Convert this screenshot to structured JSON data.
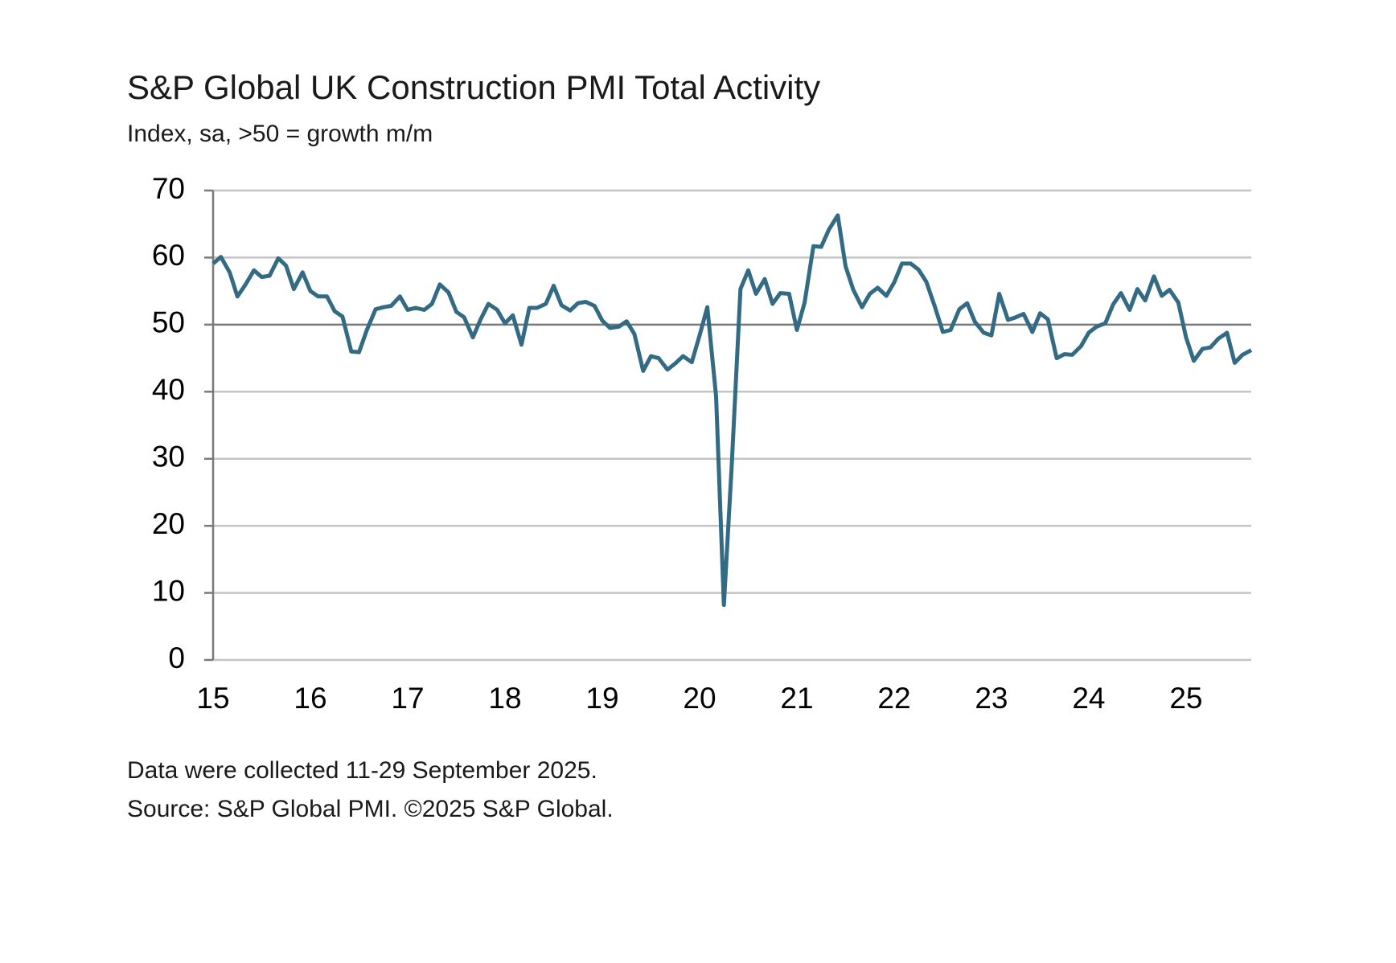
{
  "chart_data": {
    "type": "line",
    "title": "S&P Global UK Construction PMI Total Activity",
    "subtitle": "Index, sa, >50 = growth m/m",
    "notes": [
      "Data were collected 11-29 September 2025.",
      "Source: S&P Global PMI. ©2025 S&P Global."
    ],
    "x": [
      15,
      15.08,
      15.17,
      15.25,
      15.33,
      15.42,
      15.5,
      15.58,
      15.67,
      15.75,
      15.83,
      15.92,
      16,
      16.08,
      16.17,
      16.25,
      16.33,
      16.42,
      16.5,
      16.58,
      16.67,
      16.75,
      16.83,
      16.92,
      17,
      17.08,
      17.17,
      17.25,
      17.33,
      17.42,
      17.5,
      17.58,
      17.67,
      17.75,
      17.83,
      17.92,
      18,
      18.08,
      18.17,
      18.25,
      18.33,
      18.42,
      18.5,
      18.58,
      18.67,
      18.75,
      18.83,
      18.92,
      19,
      19.08,
      19.17,
      19.25,
      19.33,
      19.42,
      19.5,
      19.58,
      19.67,
      19.75,
      19.83,
      19.92,
      20,
      20.08,
      20.17,
      20.25,
      20.33,
      20.42,
      20.5,
      20.58,
      20.67,
      20.75,
      20.83,
      20.92,
      21,
      21.08,
      21.17,
      21.25,
      21.33,
      21.42,
      21.5,
      21.58,
      21.67,
      21.75,
      21.83,
      21.92,
      22,
      22.08,
      22.17,
      22.25,
      22.33,
      22.42,
      22.5,
      22.58,
      22.67,
      22.75,
      22.83,
      22.92,
      23,
      23.08,
      23.17,
      23.25,
      23.33,
      23.42,
      23.5,
      23.58,
      23.67,
      23.75,
      23.83,
      23.92,
      24,
      24.08,
      24.17,
      24.25,
      24.33,
      24.42,
      24.5,
      24.58,
      24.67,
      24.75,
      24.83,
      24.92,
      25,
      25.08,
      25.17,
      25.25,
      25.33,
      25.42,
      25.5,
      25.58,
      25.67
    ],
    "series": [
      {
        "name": "Total Activity",
        "color": "#336b84",
        "values": [
          59.1,
          60.1,
          57.8,
          54.2,
          55.9,
          58.1,
          57.1,
          57.3,
          59.9,
          58.8,
          55.3,
          57.8,
          55.0,
          54.2,
          54.2,
          52.0,
          51.2,
          46.0,
          45.9,
          49.2,
          52.3,
          52.6,
          52.8,
          54.2,
          52.2,
          52.5,
          52.2,
          53.1,
          56.0,
          54.8,
          51.9,
          51.1,
          48.1,
          50.8,
          53.1,
          52.2,
          50.2,
          51.4,
          47.0,
          52.5,
          52.5,
          53.1,
          55.8,
          52.9,
          52.1,
          53.2,
          53.4,
          52.8,
          50.6,
          49.5,
          49.7,
          50.5,
          48.6,
          43.1,
          45.3,
          45.0,
          43.3,
          44.2,
          45.3,
          44.4,
          48.4,
          52.6,
          39.3,
          8.2,
          28.9,
          55.3,
          58.1,
          54.6,
          56.8,
          53.1,
          54.7,
          54.6,
          49.2,
          53.3,
          61.7,
          61.6,
          64.2,
          66.3,
          58.7,
          55.2,
          52.6,
          54.6,
          55.5,
          54.3,
          56.3,
          59.1,
          59.1,
          58.2,
          56.4,
          52.6,
          48.9,
          49.2,
          52.3,
          53.2,
          50.4,
          48.8,
          48.4,
          54.6,
          50.7,
          51.1,
          51.6,
          48.9,
          51.7,
          50.8,
          45.0,
          45.6,
          45.5,
          46.8,
          48.8,
          49.7,
          50.2,
          53.0,
          54.7,
          52.2,
          55.3,
          53.6,
          57.2,
          54.3,
          55.2,
          53.3,
          48.1,
          44.6,
          46.4,
          46.6,
          47.9,
          48.8,
          44.3,
          45.5,
          46.2
        ]
      }
    ],
    "xlim": [
      15,
      25.67
    ],
    "xticks": [
      15,
      16,
      17,
      18,
      19,
      20,
      21,
      22,
      23,
      24,
      25
    ],
    "ylim": [
      0,
      70
    ],
    "yticks": [
      0,
      10,
      20,
      30,
      40,
      50,
      60,
      70
    ],
    "grid": true,
    "reference_line": 50
  }
}
